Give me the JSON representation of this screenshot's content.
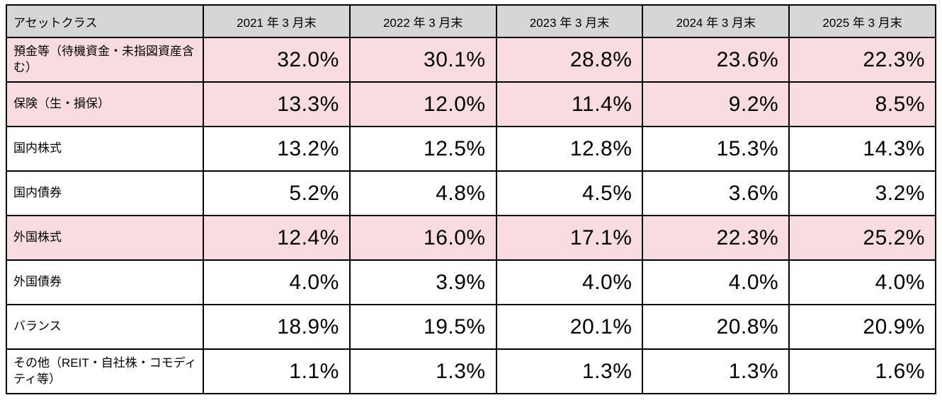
{
  "colors": {
    "header_bg": "#d6d6d6",
    "highlight_row_bg": "#f8dce0",
    "border": "#000000",
    "text": "#000000"
  },
  "table": {
    "header": {
      "asset_class_label": "アセットクラス",
      "columns": [
        "2021 年 3 月末",
        "2022 年 3 月末",
        "2023 年 3 月末",
        "2024 年 3 月末",
        "2025 年 3 月末"
      ]
    },
    "rows": [
      {
        "label": "預金等（待機資金・未指図資産含む）",
        "highlighted": true,
        "values": [
          "32.0%",
          "30.1%",
          "28.8%",
          "23.6%",
          "22.3%"
        ]
      },
      {
        "label": "保険（生・損保）",
        "highlighted": true,
        "values": [
          "13.3%",
          "12.0%",
          "11.4%",
          "9.2%",
          "8.5%"
        ]
      },
      {
        "label": "国内株式",
        "highlighted": false,
        "values": [
          "13.2%",
          "12.5%",
          "12.8%",
          "15.3%",
          "14.3%"
        ]
      },
      {
        "label": "国内債券",
        "highlighted": false,
        "values": [
          "5.2%",
          "4.8%",
          "4.5%",
          "3.6%",
          "3.2%"
        ]
      },
      {
        "label": "外国株式",
        "highlighted": true,
        "values": [
          "12.4%",
          "16.0%",
          "17.1%",
          "22.3%",
          "25.2%"
        ]
      },
      {
        "label": "外国債券",
        "highlighted": false,
        "values": [
          "4.0%",
          "3.9%",
          "4.0%",
          "4.0%",
          "4.0%"
        ]
      },
      {
        "label": "バランス",
        "highlighted": false,
        "values": [
          "18.9%",
          "19.5%",
          "20.1%",
          "20.8%",
          "20.9%"
        ]
      },
      {
        "label": "その他（REIT・自社株・コモディティ等）",
        "highlighted": false,
        "values": [
          "1.1%",
          "1.3%",
          "1.3%",
          "1.3%",
          "1.6%"
        ]
      }
    ]
  },
  "chart_data": {
    "type": "table",
    "title": "",
    "unit": "%",
    "categories": [
      "2021年3月末",
      "2022年3月末",
      "2023年3月末",
      "2024年3月末",
      "2025年3月末"
    ],
    "row_header_label": "アセットクラス",
    "series": [
      {
        "name": "預金等（待機資金・未指図資産含む）",
        "values": [
          32.0,
          30.1,
          28.8,
          23.6,
          22.3
        ]
      },
      {
        "name": "保険（生・損保）",
        "values": [
          13.3,
          12.0,
          11.4,
          9.2,
          8.5
        ]
      },
      {
        "name": "国内株式",
        "values": [
          13.2,
          12.5,
          12.8,
          15.3,
          14.3
        ]
      },
      {
        "name": "国内債券",
        "values": [
          5.2,
          4.8,
          4.5,
          3.6,
          3.2
        ]
      },
      {
        "name": "外国株式",
        "values": [
          12.4,
          16.0,
          17.1,
          22.3,
          25.2
        ]
      },
      {
        "name": "外国債券",
        "values": [
          4.0,
          3.9,
          4.0,
          4.0,
          4.0
        ]
      },
      {
        "name": "バランス",
        "values": [
          18.9,
          19.5,
          20.1,
          20.8,
          20.9
        ]
      },
      {
        "name": "その他（REIT・自社株・コモディティ等）",
        "values": [
          1.1,
          1.3,
          1.3,
          1.3,
          1.6
        ]
      }
    ]
  }
}
